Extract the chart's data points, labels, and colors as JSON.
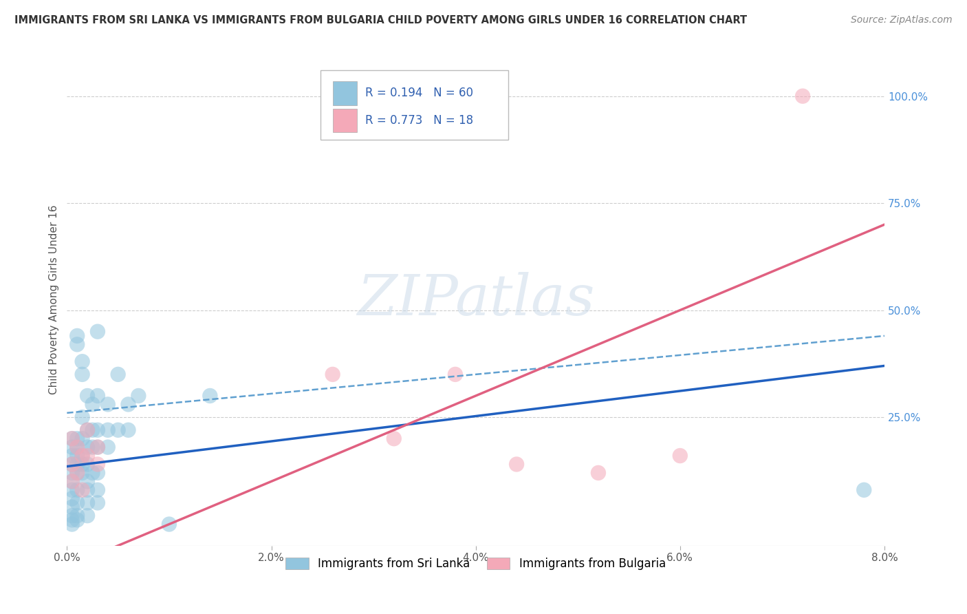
{
  "title": "IMMIGRANTS FROM SRI LANKA VS IMMIGRANTS FROM BULGARIA CHILD POVERTY AMONG GIRLS UNDER 16 CORRELATION CHART",
  "source": "Source: ZipAtlas.com",
  "ylabel": "Child Poverty Among Girls Under 16",
  "xlim": [
    0.0,
    0.08
  ],
  "ylim": [
    -0.05,
    1.1
  ],
  "xtick_labels": [
    "0.0%",
    "2.0%",
    "4.0%",
    "6.0%",
    "8.0%"
  ],
  "xtick_values": [
    0.0,
    0.02,
    0.04,
    0.06,
    0.08
  ],
  "ytick_right_labels": [
    "100.0%",
    "75.0%",
    "50.0%",
    "25.0%"
  ],
  "ytick_right_values": [
    1.0,
    0.75,
    0.5,
    0.25
  ],
  "watermark": "ZIPatlas",
  "sri_lanka_color": "#92c5de",
  "bulgaria_color": "#f4a9b8",
  "sri_lanka_line_color": "#2060c0",
  "sri_lanka_dash_color": "#60a0d0",
  "bulgaria_line_color": "#e06080",
  "sri_lanka_R": 0.194,
  "sri_lanka_N": 60,
  "bulgaria_R": 0.773,
  "bulgaria_N": 18,
  "sri_lanka_scatter": [
    [
      0.0005,
      0.2
    ],
    [
      0.0005,
      0.18
    ],
    [
      0.0005,
      0.16
    ],
    [
      0.0005,
      0.14
    ],
    [
      0.0005,
      0.12
    ],
    [
      0.0005,
      0.1
    ],
    [
      0.0005,
      0.08
    ],
    [
      0.0005,
      0.06
    ],
    [
      0.0005,
      0.04
    ],
    [
      0.0005,
      0.02
    ],
    [
      0.0005,
      0.01
    ],
    [
      0.0005,
      0.0
    ],
    [
      0.001,
      0.44
    ],
    [
      0.001,
      0.42
    ],
    [
      0.001,
      0.2
    ],
    [
      0.001,
      0.18
    ],
    [
      0.001,
      0.16
    ],
    [
      0.001,
      0.14
    ],
    [
      0.001,
      0.12
    ],
    [
      0.001,
      0.08
    ],
    [
      0.001,
      0.05
    ],
    [
      0.001,
      0.02
    ],
    [
      0.001,
      0.01
    ],
    [
      0.0015,
      0.38
    ],
    [
      0.0015,
      0.35
    ],
    [
      0.0015,
      0.25
    ],
    [
      0.0015,
      0.2
    ],
    [
      0.0015,
      0.16
    ],
    [
      0.0015,
      0.14
    ],
    [
      0.0015,
      0.12
    ],
    [
      0.002,
      0.3
    ],
    [
      0.002,
      0.22
    ],
    [
      0.002,
      0.18
    ],
    [
      0.002,
      0.14
    ],
    [
      0.002,
      0.1
    ],
    [
      0.002,
      0.08
    ],
    [
      0.002,
      0.05
    ],
    [
      0.002,
      0.02
    ],
    [
      0.0025,
      0.28
    ],
    [
      0.0025,
      0.22
    ],
    [
      0.0025,
      0.18
    ],
    [
      0.0025,
      0.12
    ],
    [
      0.003,
      0.45
    ],
    [
      0.003,
      0.3
    ],
    [
      0.003,
      0.22
    ],
    [
      0.003,
      0.18
    ],
    [
      0.003,
      0.12
    ],
    [
      0.003,
      0.08
    ],
    [
      0.003,
      0.05
    ],
    [
      0.004,
      0.28
    ],
    [
      0.004,
      0.22
    ],
    [
      0.004,
      0.18
    ],
    [
      0.005,
      0.35
    ],
    [
      0.005,
      0.22
    ],
    [
      0.006,
      0.28
    ],
    [
      0.006,
      0.22
    ],
    [
      0.007,
      0.3
    ],
    [
      0.01,
      0.0
    ],
    [
      0.014,
      0.3
    ],
    [
      0.078,
      0.08
    ]
  ],
  "bulgaria_scatter": [
    [
      0.0005,
      0.2
    ],
    [
      0.0005,
      0.14
    ],
    [
      0.0005,
      0.1
    ],
    [
      0.001,
      0.18
    ],
    [
      0.001,
      0.12
    ],
    [
      0.0015,
      0.16
    ],
    [
      0.0015,
      0.08
    ],
    [
      0.002,
      0.22
    ],
    [
      0.002,
      0.16
    ],
    [
      0.003,
      0.18
    ],
    [
      0.003,
      0.14
    ],
    [
      0.026,
      0.35
    ],
    [
      0.032,
      0.2
    ],
    [
      0.038,
      0.35
    ],
    [
      0.044,
      0.14
    ],
    [
      0.052,
      0.12
    ],
    [
      0.06,
      0.16
    ],
    [
      0.072,
      1.0
    ]
  ],
  "background_color": "#ffffff",
  "grid_color": "#cccccc"
}
